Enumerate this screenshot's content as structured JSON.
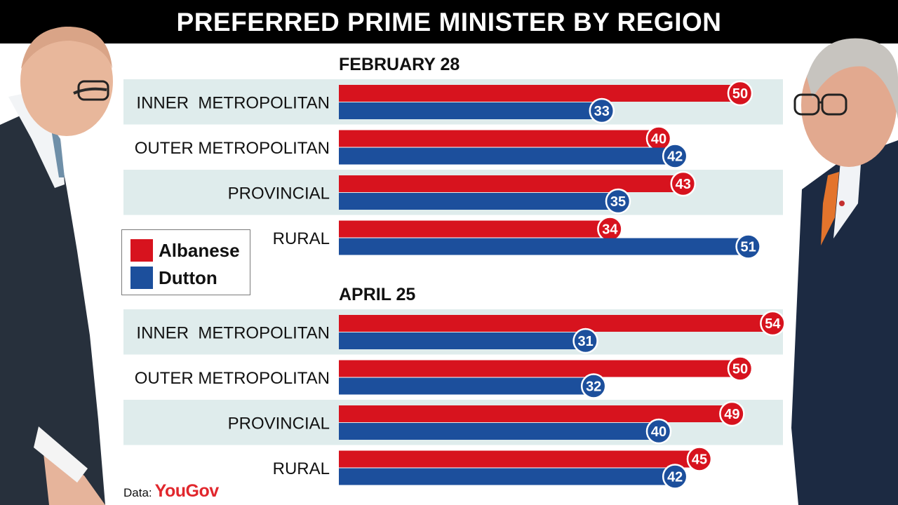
{
  "title": "PREFERRED PRIME MINISTER BY REGION",
  "colors": {
    "albanese": "#d7131e",
    "dutton": "#1c4f9c",
    "row_shade": "#dfecec"
  },
  "legend": {
    "albanese": "Albanese",
    "dutton": "Dutton"
  },
  "source": {
    "prefix": "Data:",
    "name": "YouGov"
  },
  "chart_data": {
    "type": "bar",
    "orientation": "horizontal",
    "title": "PREFERRED PRIME MINISTER BY REGION",
    "xlim": [
      0,
      56
    ],
    "panels": [
      {
        "title": "FEBRUARY 28",
        "categories": [
          "INNER  METROPOLITAN",
          "OUTER METROPOLITAN",
          "PROVINCIAL",
          "RURAL"
        ],
        "series": [
          {
            "name": "Albanese",
            "values": [
              50,
              40,
              43,
              34
            ]
          },
          {
            "name": "Dutton",
            "values": [
              33,
              42,
              35,
              51
            ]
          }
        ]
      },
      {
        "title": "APRIL 25",
        "categories": [
          "INNER  METROPOLITAN",
          "OUTER METROPOLITAN",
          "PROVINCIAL",
          "RURAL"
        ],
        "series": [
          {
            "name": "Albanese",
            "values": [
              54,
              50,
              49,
              45
            ]
          },
          {
            "name": "Dutton",
            "values": [
              31,
              32,
              40,
              42
            ]
          }
        ]
      }
    ]
  }
}
